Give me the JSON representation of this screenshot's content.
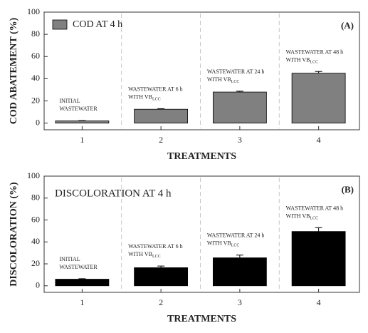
{
  "chart_data": [
    {
      "type": "bar",
      "panel_label": "(A)",
      "ylabel": "COD ABATEMENT (%)",
      "xlabel": "TREATMENTS",
      "categories": [
        "1",
        "2",
        "3",
        "4"
      ],
      "series": [
        {
          "name": "COD AT 4 h",
          "color": "#808080",
          "values": [
            2,
            12.5,
            28,
            45
          ],
          "errors": [
            0.3,
            0.5,
            0.8,
            1.5
          ]
        }
      ],
      "legend_swatch": true,
      "annotations": [
        {
          "lines": [
            "INITIAL",
            "WASTEWATER"
          ]
        },
        {
          "lines": [
            "WASTEWATER AT 6 h",
            "WITH VB"
          ],
          "sub": "LCC"
        },
        {
          "lines": [
            "WASTEWATER AT 24 h",
            "WITH VB"
          ],
          "sub": "LCC"
        },
        {
          "lines": [
            "WASTEWATER AT 48 h",
            "WITH VB"
          ],
          "sub": "LCC"
        }
      ],
      "ylim": [
        -6,
        100
      ],
      "yticks": [
        0,
        20,
        40,
        60,
        80,
        100
      ]
    },
    {
      "type": "bar",
      "panel_label": "(B)",
      "ylabel": "DISCOLORATION (%)",
      "xlabel": "TREATMENTS",
      "categories": [
        "1",
        "2",
        "3",
        "4"
      ],
      "series": [
        {
          "name": "DISCOLORATION AT 4 h",
          "color": "#000000",
          "values": [
            6,
            16.5,
            25.5,
            49.5
          ],
          "errors": [
            0.4,
            1.5,
            2.5,
            3.5
          ]
        }
      ],
      "legend_swatch": false,
      "annotations": [
        {
          "lines": [
            "INITIAL",
            "WASTEWATER"
          ]
        },
        {
          "lines": [
            "WASTEWATER AT 6 h",
            "WITH VB"
          ],
          "sub": "LCC"
        },
        {
          "lines": [
            "WASTEWATER AT 24 h",
            "WITH VB"
          ],
          "sub": "LCC"
        },
        {
          "lines": [
            "WASTEWATER AT 48 h",
            "WITH VB"
          ],
          "sub": "LCC"
        }
      ],
      "ylim": [
        -6,
        100
      ],
      "yticks": [
        0,
        20,
        40,
        60,
        80,
        100
      ]
    }
  ]
}
